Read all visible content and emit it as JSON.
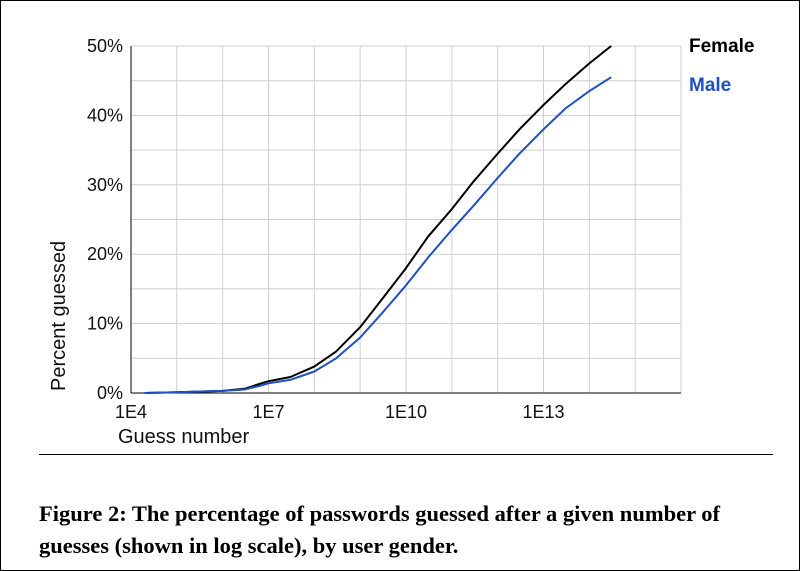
{
  "colors": {
    "female": "#000000",
    "male": "#1f4fc4",
    "grid": "#cfcfcf"
  },
  "caption": "Figure 2: The percentage of passwords guessed after a given number of guesses (shown in log scale), by user gender.",
  "chart_data": {
    "type": "line",
    "xlabel": "Guess number",
    "ylabel": "Percent guessed",
    "x_scale": "log10",
    "xlim": [
      10000,
      1e+16
    ],
    "ylim": [
      0,
      50
    ],
    "x_ticks": [
      {
        "value": 10000,
        "label": "1E4"
      },
      {
        "value": 10000000,
        "label": "1E7"
      },
      {
        "value": 10000000000,
        "label": "1E10"
      },
      {
        "value": 10000000000000,
        "label": "1E13"
      }
    ],
    "y_ticks": [
      {
        "value": 0,
        "label": "0%"
      },
      {
        "value": 10,
        "label": "10%"
      },
      {
        "value": 20,
        "label": "20%"
      },
      {
        "value": 30,
        "label": "30%"
      },
      {
        "value": 40,
        "label": "40%"
      },
      {
        "value": 50,
        "label": "50%"
      }
    ],
    "grid": true,
    "legend": "top-right",
    "series": [
      {
        "name": "Female",
        "color": "#000000",
        "x": [
          20000,
          100000,
          1000000,
          3000000,
          7000000,
          10000000,
          30000000,
          100000000,
          300000000,
          1000000000,
          3000000000,
          10000000000,
          30000000000,
          100000000000,
          300000000000,
          1000000000000,
          3000000000000,
          10000000000000,
          30000000000000,
          100000000000000,
          300000000000000
        ],
        "y": [
          0,
          0.1,
          0.3,
          0.6,
          1.4,
          1.7,
          2.3,
          3.8,
          6.0,
          9.5,
          13.5,
          18.0,
          22.5,
          26.5,
          30.5,
          34.5,
          38.0,
          41.5,
          44.5,
          47.5,
          50.0
        ]
      },
      {
        "name": "Male",
        "color": "#1f4fc4",
        "x": [
          20000,
          100000,
          1000000,
          3000000,
          7000000,
          10000000,
          30000000,
          100000000,
          300000000,
          1000000000,
          3000000000,
          10000000000,
          30000000000,
          100000000000,
          300000000000,
          1000000000000,
          3000000000000,
          10000000000000,
          30000000000000,
          100000000000000,
          300000000000000
        ],
        "y": [
          0,
          0.1,
          0.3,
          0.5,
          1.1,
          1.4,
          1.9,
          3.1,
          5.0,
          8.0,
          11.5,
          15.5,
          19.5,
          23.5,
          27.0,
          31.0,
          34.5,
          38.0,
          41.0,
          43.5,
          45.5
        ]
      }
    ]
  }
}
